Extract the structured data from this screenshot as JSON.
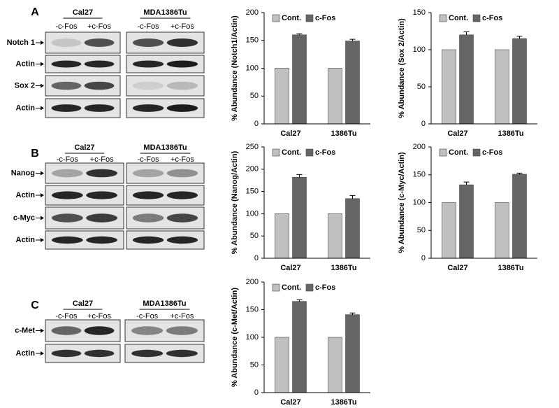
{
  "panels": [
    {
      "letter": "A",
      "cell_lines": [
        "Cal27",
        "MDA1386Tu"
      ],
      "conditions": [
        [
          "-c-Fos",
          "+c-Fos"
        ],
        [
          "-c-Fos",
          "+c-Fos"
        ]
      ],
      "rows": [
        "Notch 1",
        "Actin",
        "Sox 2",
        "Actin"
      ]
    },
    {
      "letter": "B",
      "cell_lines": [
        "Cal27",
        "MDA1386Tu"
      ],
      "conditions": [
        [
          "-c-Fos",
          "+c-Fos"
        ],
        [
          "-c-Fos",
          "+c-Fos"
        ]
      ],
      "rows": [
        "Nanog",
        "Actin",
        "c-Myc",
        "Actin"
      ]
    },
    {
      "letter": "C",
      "cell_lines": [
        "Cal27",
        "MDA1386Tu"
      ],
      "conditions": [
        [
          "-c-Fos",
          "+c-Fos"
        ],
        [
          "-c-Fos",
          "+c-Fos"
        ]
      ],
      "rows": [
        "c-Met",
        "Actin"
      ]
    }
  ],
  "chart_data": [
    {
      "type": "bar",
      "y_label": "% Abundance (Notch1/Actin)",
      "categories": [
        "Cal27",
        "1386Tu"
      ],
      "series": [
        {
          "name": "Cont.",
          "color": "#c0c0c0",
          "values": [
            100,
            100
          ]
        },
        {
          "name": "c-Fos",
          "color": "#666666",
          "values": [
            160,
            149
          ],
          "errors": [
            2,
            3
          ]
        }
      ],
      "ylim": [
        0,
        200
      ],
      "yticks": [
        0,
        50,
        100,
        150,
        200
      ],
      "legend": "upper left"
    },
    {
      "type": "bar",
      "y_label": "% Abundance (Sox 2/Actin)",
      "categories": [
        "Cal27",
        "1386Tu"
      ],
      "series": [
        {
          "name": "Cont.",
          "color": "#c0c0c0",
          "values": [
            100,
            100
          ]
        },
        {
          "name": "c-Fos",
          "color": "#666666",
          "values": [
            120,
            115
          ],
          "errors": [
            4,
            3
          ]
        }
      ],
      "ylim": [
        0,
        150
      ],
      "yticks": [
        0,
        50,
        100,
        150
      ],
      "legend": "upper left"
    },
    {
      "type": "bar",
      "y_label": "% Abundance (Nanog/Actin)",
      "categories": [
        "Cal27",
        "1386Tu"
      ],
      "series": [
        {
          "name": "Cont.",
          "color": "#c0c0c0",
          "values": [
            100,
            100
          ]
        },
        {
          "name": "c-Fos",
          "color": "#666666",
          "values": [
            182,
            134
          ],
          "errors": [
            6,
            7
          ]
        }
      ],
      "ylim": [
        0,
        250
      ],
      "yticks": [
        0,
        50,
        100,
        150,
        200,
        250
      ],
      "legend": "upper left"
    },
    {
      "type": "bar",
      "y_label": "% Abundance (c-Myc/Actin)",
      "categories": [
        "Cal27",
        "1386Tu"
      ],
      "series": [
        {
          "name": "Cont.",
          "color": "#c0c0c0",
          "values": [
            100,
            100
          ]
        },
        {
          "name": "c-Fos",
          "color": "#666666",
          "values": [
            132,
            151
          ],
          "errors": [
            5,
            2
          ]
        }
      ],
      "ylim": [
        0,
        200
      ],
      "yticks": [
        0,
        50,
        100,
        150,
        200
      ],
      "legend": "upper left"
    },
    {
      "type": "bar",
      "y_label": "% Abundance (c-Met/Actin)",
      "categories": [
        "Cal27",
        "1386Tu"
      ],
      "series": [
        {
          "name": "Cont.",
          "color": "#c0c0c0",
          "values": [
            100,
            100
          ]
        },
        {
          "name": "c-Fos",
          "color": "#666666",
          "values": [
            165,
            141
          ],
          "errors": [
            3,
            3
          ]
        }
      ],
      "ylim": [
        0,
        200
      ],
      "yticks": [
        0,
        50,
        100,
        150,
        200
      ],
      "legend": "upper left"
    }
  ]
}
